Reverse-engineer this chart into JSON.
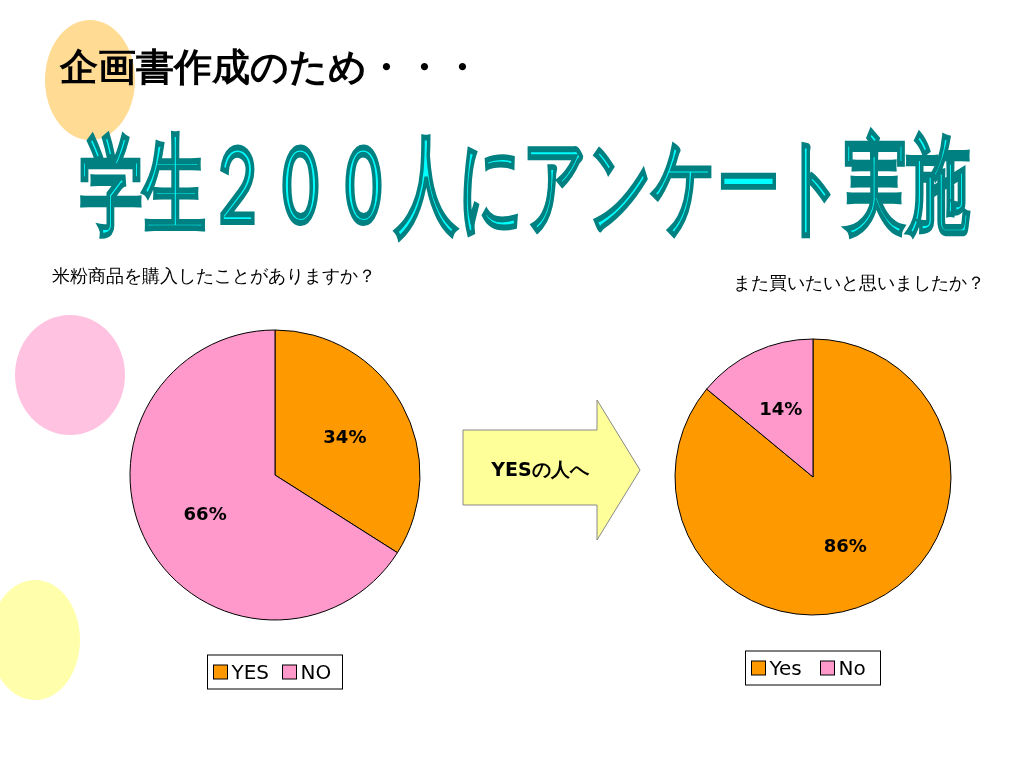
{
  "chart_data": [
    {
      "type": "other",
      "title": "企画書作成のため・・・",
      "subtitle": "学生２００人にアンケート実施",
      "annotations": [
        "YESの人へ"
      ]
    },
    {
      "type": "pie",
      "title": "米粉商品を購入したことがありますか？",
      "categories": [
        "YES",
        "NO"
      ],
      "values": [
        34,
        66
      ],
      "colors": [
        "#ff9900",
        "#ff99cc"
      ],
      "value_labels": [
        "34%",
        "66%"
      ],
      "legend": "bottom"
    },
    {
      "type": "pie",
      "title": "また買いたいと思いましたか？",
      "categories": [
        "Yes",
        "No"
      ],
      "values": [
        86,
        14
      ],
      "colors": [
        "#ff9900",
        "#ff99cc"
      ],
      "value_labels": [
        "86%",
        "14%"
      ],
      "legend": "bottom"
    }
  ]
}
